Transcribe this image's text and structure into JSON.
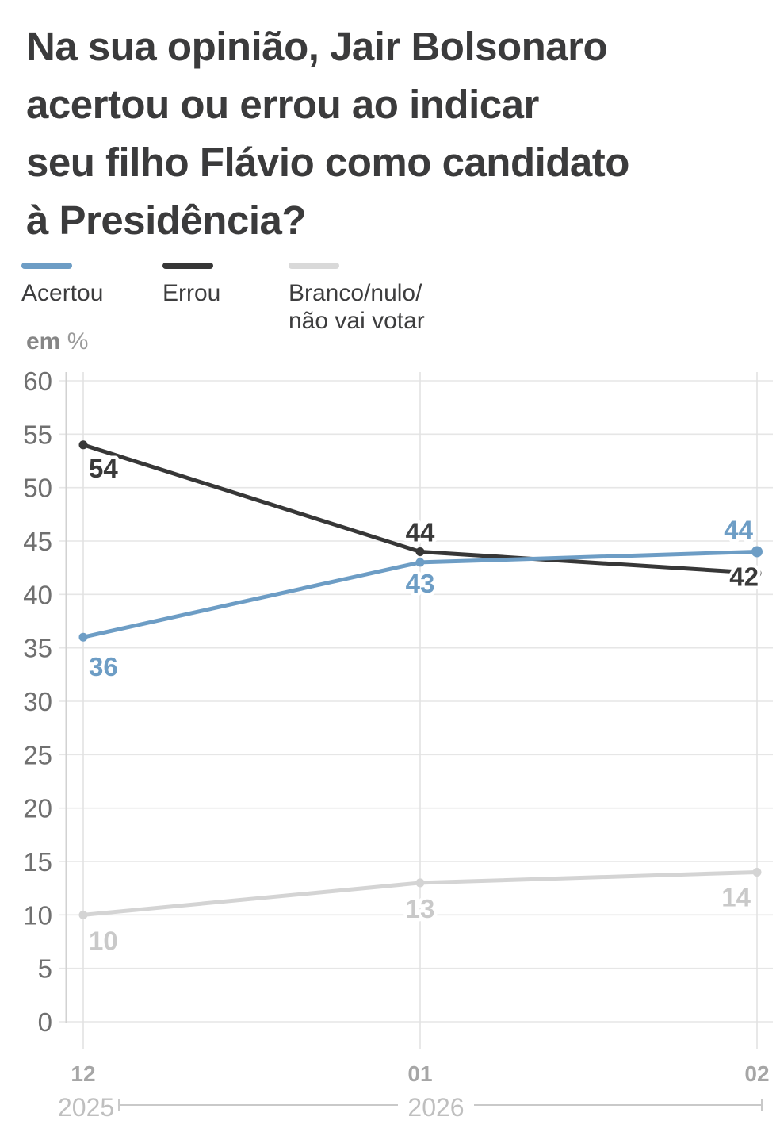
{
  "title_lines": [
    "Na sua opinião, Jair Bolsonaro",
    "acertou ou errou ao indicar",
    "seu filho Flávio como candidato",
    "à Presidência?"
  ],
  "legend": {
    "items": [
      {
        "label": "Acertou",
        "color": "#6d9dc5"
      },
      {
        "label": "Errou",
        "color": "#373737"
      },
      {
        "label": "Branco/nulo/\nnão vai votar",
        "color": "#d9d9d9"
      }
    ]
  },
  "unit_label": {
    "bold": "em",
    "percent": "%"
  },
  "chart_data": {
    "type": "line",
    "title": "Na sua opinião, Jair Bolsonaro acertou ou errou ao indicar seu filho Flávio como candidato à Presidência?",
    "ylabel": "em %",
    "categories": [
      "12",
      "01",
      "02"
    ],
    "x_axis_years": [
      {
        "label": "2025",
        "covers": [
          "12"
        ]
      },
      {
        "label": "2026",
        "covers": [
          "01",
          "02"
        ]
      }
    ],
    "ylim": [
      0,
      60
    ],
    "ytick_step": 5,
    "grid": true,
    "legend_position": "top",
    "series": [
      {
        "name": "Acertou",
        "color": "#6d9dc5",
        "values": [
          36,
          43,
          44
        ]
      },
      {
        "name": "Errou",
        "color": "#373737",
        "values": [
          54,
          44,
          42
        ]
      },
      {
        "name": "Branco/nulo/não vai votar",
        "color": "#d4d4d4",
        "values": [
          10,
          13,
          14
        ]
      }
    ]
  }
}
